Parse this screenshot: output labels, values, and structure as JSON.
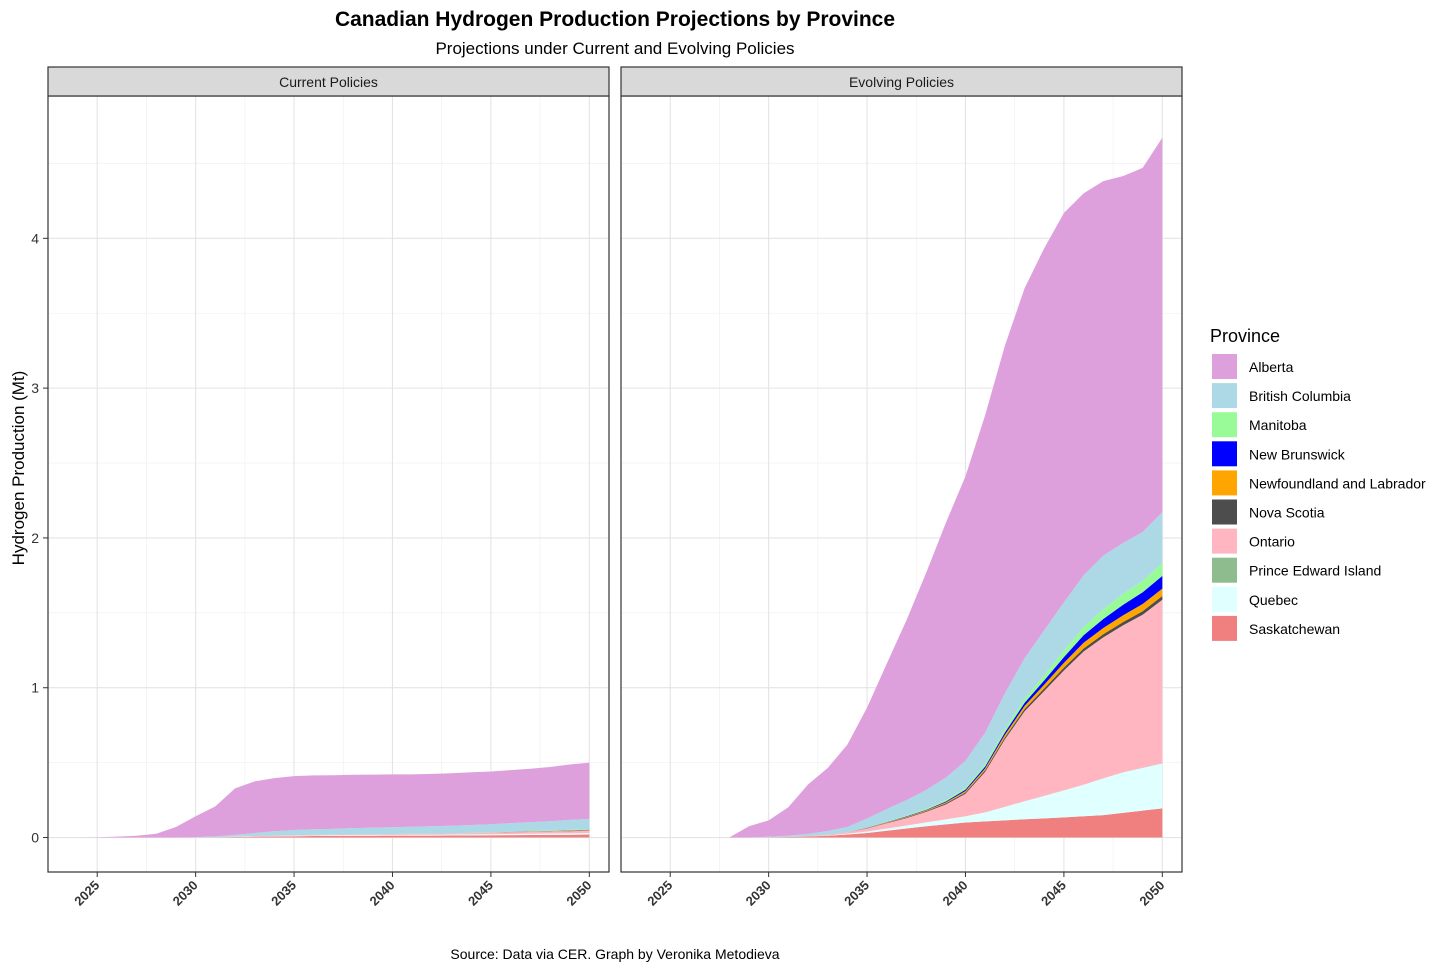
{
  "chart_data": {
    "type": "area",
    "stacked": true,
    "title": "Canadian Hydrogen Production Projections by Province",
    "subtitle": "Projections under Current and Evolving Policies",
    "ylabel": "Hydrogen Production (Mt)",
    "caption": "Source: Data via CER. Graph by Veronika Metodieva",
    "legend_title": "Province",
    "legend_position": "right",
    "grid": true,
    "xlim": [
      2022.5,
      2051
    ],
    "ylim": [
      -0.23,
      4.95
    ],
    "x_ticks": [
      2025,
      2030,
      2035,
      2040,
      2045,
      2050
    ],
    "y_ticks": [
      0,
      1,
      2,
      3,
      4
    ],
    "x": [
      2023,
      2024,
      2025,
      2026,
      2027,
      2028,
      2029,
      2030,
      2031,
      2032,
      2033,
      2034,
      2035,
      2036,
      2037,
      2038,
      2039,
      2040,
      2041,
      2042,
      2043,
      2044,
      2045,
      2046,
      2047,
      2048,
      2049,
      2050
    ],
    "provinces": [
      {
        "name": "Saskatchewan",
        "color": "#F08080"
      },
      {
        "name": "Quebec",
        "color": "#E0FFFF"
      },
      {
        "name": "Prince Edward Island",
        "color": "#8FBC8F"
      },
      {
        "name": "Ontario",
        "color": "#FFB6C1"
      },
      {
        "name": "Nova Scotia",
        "color": "#4D4D4D"
      },
      {
        "name": "Newfoundland and Labrador",
        "color": "#FFA500"
      },
      {
        "name": "New Brunswick",
        "color": "#0000FF"
      },
      {
        "name": "Manitoba",
        "color": "#98FB98"
      },
      {
        "name": "British Columbia",
        "color": "#ADD8E6"
      },
      {
        "name": "Alberta",
        "color": "#DDA0DD"
      }
    ],
    "legend_order": [
      "Alberta",
      "British Columbia",
      "Manitoba",
      "New Brunswick",
      "Newfoundland and Labrador",
      "Nova Scotia",
      "Ontario",
      "Prince Edward Island",
      "Quebec",
      "Saskatchewan"
    ],
    "panels": [
      {
        "label": "Current Policies",
        "series": {
          "Saskatchewan": [
            0,
            0,
            0,
            0,
            0,
            0,
            0,
            0,
            0.002,
            0.004,
            0.006,
            0.008,
            0.009,
            0.01,
            0.011,
            0.012,
            0.012,
            0.013,
            0.013,
            0.013,
            0.014,
            0.014,
            0.015,
            0.016,
            0.017,
            0.018,
            0.019,
            0.02
          ],
          "Quebec": [
            0,
            0,
            0,
            0,
            0,
            0,
            0,
            0,
            0,
            0.001,
            0.002,
            0.003,
            0.003,
            0.004,
            0.004,
            0.005,
            0.005,
            0.005,
            0.006,
            0.006,
            0.006,
            0.007,
            0.007,
            0.008,
            0.008,
            0.009,
            0.009,
            0.01
          ],
          "Prince Edward Island": [
            0,
            0,
            0,
            0,
            0,
            0,
            0,
            0,
            0,
            0,
            0,
            0,
            0,
            0,
            0,
            0,
            0,
            0,
            0,
            0,
            0,
            0,
            0,
            0,
            0,
            0,
            0,
            0
          ],
          "Ontario": [
            0,
            0,
            0,
            0,
            0,
            0,
            0,
            0,
            0,
            0.001,
            0.002,
            0.003,
            0.003,
            0.004,
            0.004,
            0.005,
            0.005,
            0.006,
            0.006,
            0.007,
            0.008,
            0.009,
            0.01,
            0.011,
            0.012,
            0.013,
            0.014,
            0.015
          ],
          "Nova Scotia": [
            0,
            0,
            0,
            0,
            0,
            0,
            0,
            0,
            0,
            0,
            0,
            0,
            0,
            0,
            0,
            0,
            0,
            0,
            0,
            0,
            0,
            0,
            0,
            0.001,
            0.001,
            0.001,
            0.002,
            0.002
          ],
          "Newfoundland and Labrador": [
            0,
            0,
            0,
            0,
            0,
            0,
            0,
            0,
            0,
            0,
            0,
            0,
            0,
            0,
            0,
            0,
            0,
            0,
            0,
            0,
            0,
            0,
            0.001,
            0.001,
            0.002,
            0.002,
            0.003,
            0.003
          ],
          "New Brunswick": [
            0,
            0,
            0,
            0,
            0,
            0,
            0,
            0,
            0,
            0,
            0,
            0,
            0,
            0,
            0,
            0,
            0,
            0,
            0,
            0,
            0,
            0,
            0,
            0.001,
            0.001,
            0.001,
            0.002,
            0.002
          ],
          "Manitoba": [
            0,
            0,
            0,
            0,
            0,
            0,
            0,
            0,
            0,
            0,
            0,
            0,
            0,
            0,
            0,
            0,
            0,
            0,
            0,
            0,
            0,
            0.001,
            0.001,
            0.001,
            0.002,
            0.002,
            0.002,
            0.003
          ],
          "British Columbia": [
            0,
            0,
            0,
            0,
            0,
            0,
            0,
            0.002,
            0.006,
            0.012,
            0.02,
            0.028,
            0.035,
            0.037,
            0.039,
            0.041,
            0.043,
            0.045,
            0.047,
            0.049,
            0.051,
            0.053,
            0.055,
            0.057,
            0.06,
            0.063,
            0.067,
            0.07
          ],
          "Alberta": [
            0,
            0,
            0.002,
            0.006,
            0.012,
            0.025,
            0.07,
            0.14,
            0.2,
            0.31,
            0.345,
            0.355,
            0.36,
            0.36,
            0.358,
            0.356,
            0.355,
            0.353,
            0.35,
            0.35,
            0.35,
            0.352,
            0.352,
            0.354,
            0.356,
            0.362,
            0.37,
            0.375
          ]
        }
      },
      {
        "label": "Evolving Policies",
        "series": {
          "Saskatchewan": [
            0,
            0,
            0,
            0,
            0,
            0,
            0,
            0.002,
            0.004,
            0.007,
            0.012,
            0.02,
            0.03,
            0.045,
            0.06,
            0.075,
            0.088,
            0.1,
            0.108,
            0.115,
            0.122,
            0.128,
            0.135,
            0.142,
            0.15,
            0.165,
            0.18,
            0.195
          ],
          "Quebec": [
            0,
            0,
            0,
            0,
            0,
            0,
            0,
            0,
            0,
            0,
            0.002,
            0.005,
            0.01,
            0.015,
            0.02,
            0.026,
            0.033,
            0.042,
            0.06,
            0.09,
            0.12,
            0.15,
            0.18,
            0.21,
            0.245,
            0.27,
            0.285,
            0.3
          ],
          "Prince Edward Island": [
            0,
            0,
            0,
            0,
            0,
            0,
            0,
            0,
            0,
            0,
            0,
            0,
            0,
            0,
            0,
            0,
            0,
            0,
            0,
            0,
            0,
            0,
            0,
            0,
            0.001,
            0.001,
            0.002,
            0.002
          ],
          "Ontario": [
            0,
            0,
            0,
            0,
            0,
            0,
            0,
            0,
            0,
            0.002,
            0.005,
            0.01,
            0.02,
            0.035,
            0.05,
            0.07,
            0.1,
            0.15,
            0.27,
            0.45,
            0.6,
            0.7,
            0.8,
            0.89,
            0.94,
            0.98,
            1.02,
            1.09
          ],
          "Nova Scotia": [
            0,
            0,
            0,
            0,
            0,
            0,
            0,
            0,
            0,
            0,
            0,
            0,
            0.002,
            0.003,
            0.004,
            0.005,
            0.007,
            0.009,
            0.011,
            0.013,
            0.015,
            0.017,
            0.019,
            0.02,
            0.021,
            0.022,
            0.024,
            0.025
          ],
          "Newfoundland and Labrador": [
            0,
            0,
            0,
            0,
            0,
            0,
            0,
            0,
            0,
            0,
            0,
            0,
            0.002,
            0.003,
            0.004,
            0.005,
            0.007,
            0.01,
            0.013,
            0.017,
            0.021,
            0.026,
            0.032,
            0.038,
            0.042,
            0.045,
            0.048,
            0.05
          ],
          "New Brunswick": [
            0,
            0,
            0,
            0,
            0,
            0,
            0,
            0,
            0,
            0,
            0,
            0,
            0.001,
            0.002,
            0.003,
            0.004,
            0.006,
            0.009,
            0.012,
            0.016,
            0.021,
            0.028,
            0.038,
            0.05,
            0.06,
            0.07,
            0.078,
            0.085
          ],
          "Manitoba": [
            0,
            0,
            0,
            0,
            0,
            0,
            0,
            0,
            0,
            0,
            0,
            0,
            0.002,
            0.003,
            0.005,
            0.007,
            0.009,
            0.012,
            0.016,
            0.021,
            0.027,
            0.035,
            0.045,
            0.055,
            0.065,
            0.072,
            0.078,
            0.085
          ],
          "British Columbia": [
            0,
            0,
            0,
            0,
            0,
            0,
            0,
            0.003,
            0.008,
            0.015,
            0.025,
            0.035,
            0.06,
            0.084,
            0.104,
            0.125,
            0.15,
            0.18,
            0.21,
            0.24,
            0.27,
            0.3,
            0.32,
            0.345,
            0.358,
            0.34,
            0.325,
            0.34
          ],
          "Alberta": [
            0,
            0,
            0,
            0,
            0,
            0,
            0.075,
            0.11,
            0.19,
            0.33,
            0.42,
            0.55,
            0.74,
            0.97,
            1.2,
            1.45,
            1.7,
            1.9,
            2.12,
            2.32,
            2.47,
            2.55,
            2.6,
            2.55,
            2.5,
            2.45,
            2.43,
            2.5
          ]
        }
      }
    ]
  }
}
